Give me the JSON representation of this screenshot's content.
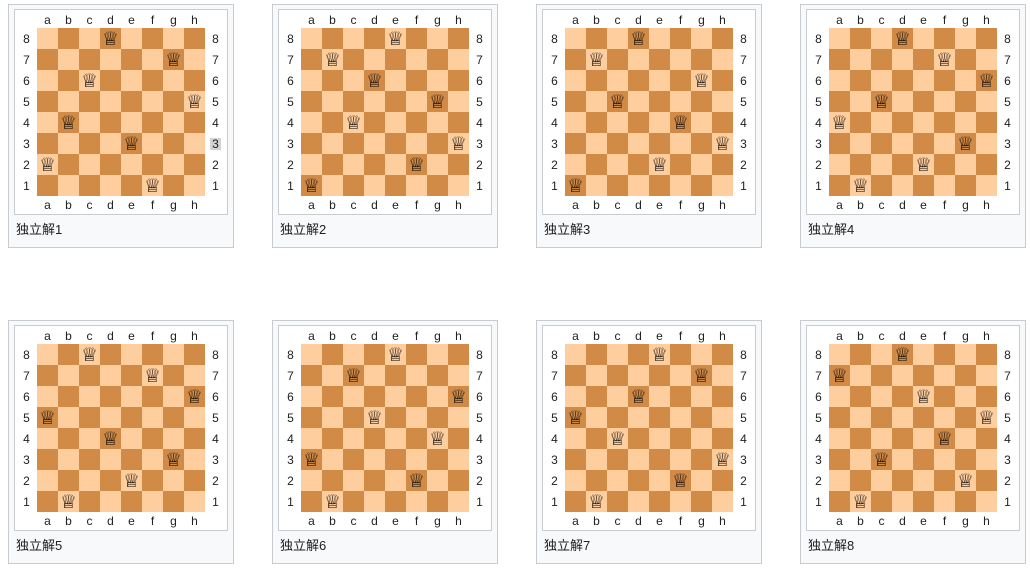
{
  "board_ui": {
    "files": [
      "a",
      "b",
      "c",
      "d",
      "e",
      "f",
      "g",
      "h"
    ],
    "ranks": [
      "8",
      "7",
      "6",
      "5",
      "4",
      "3",
      "2",
      "1"
    ],
    "queen_glyph": "♕",
    "colors": {
      "light_square": "#ffce9e",
      "dark_square": "#d18b47",
      "frame_border": "#c8ccd1",
      "frame_background": "#f8f9fa",
      "diagram_background": "#ffffff",
      "label_text": "#202122",
      "label_selection_highlight": "#d3d3d3"
    }
  },
  "boards": [
    {
      "caption": "独立解1",
      "queens": [
        "a2",
        "b4",
        "c6",
        "d8",
        "e3",
        "f1",
        "g7",
        "h5"
      ],
      "highlighted_rank_labels": [
        "right-3"
      ]
    },
    {
      "caption": "独立解2",
      "queens": [
        "a1",
        "b7",
        "c4",
        "d6",
        "e8",
        "f2",
        "g5",
        "h3"
      ],
      "highlighted_rank_labels": []
    },
    {
      "caption": "独立解3",
      "queens": [
        "a1",
        "b7",
        "c5",
        "d8",
        "e2",
        "f4",
        "g6",
        "h3"
      ],
      "highlighted_rank_labels": []
    },
    {
      "caption": "独立解4",
      "queens": [
        "a4",
        "b1",
        "c5",
        "d8",
        "e2",
        "f7",
        "g3",
        "h6"
      ],
      "highlighted_rank_labels": []
    },
    {
      "caption": "独立解5",
      "queens": [
        "a5",
        "b1",
        "c8",
        "d4",
        "e2",
        "f7",
        "g3",
        "h6"
      ],
      "highlighted_rank_labels": []
    },
    {
      "caption": "独立解6",
      "queens": [
        "a3",
        "b1",
        "c7",
        "d5",
        "e8",
        "f2",
        "g4",
        "h6"
      ],
      "highlighted_rank_labels": []
    },
    {
      "caption": "独立解7",
      "queens": [
        "a5",
        "b1",
        "c4",
        "d6",
        "e8",
        "f2",
        "g7",
        "h3"
      ],
      "highlighted_rank_labels": []
    },
    {
      "caption": "独立解8",
      "queens": [
        "a7",
        "b1",
        "c3",
        "d8",
        "e6",
        "f4",
        "g2",
        "h5"
      ],
      "highlighted_rank_labels": []
    }
  ]
}
